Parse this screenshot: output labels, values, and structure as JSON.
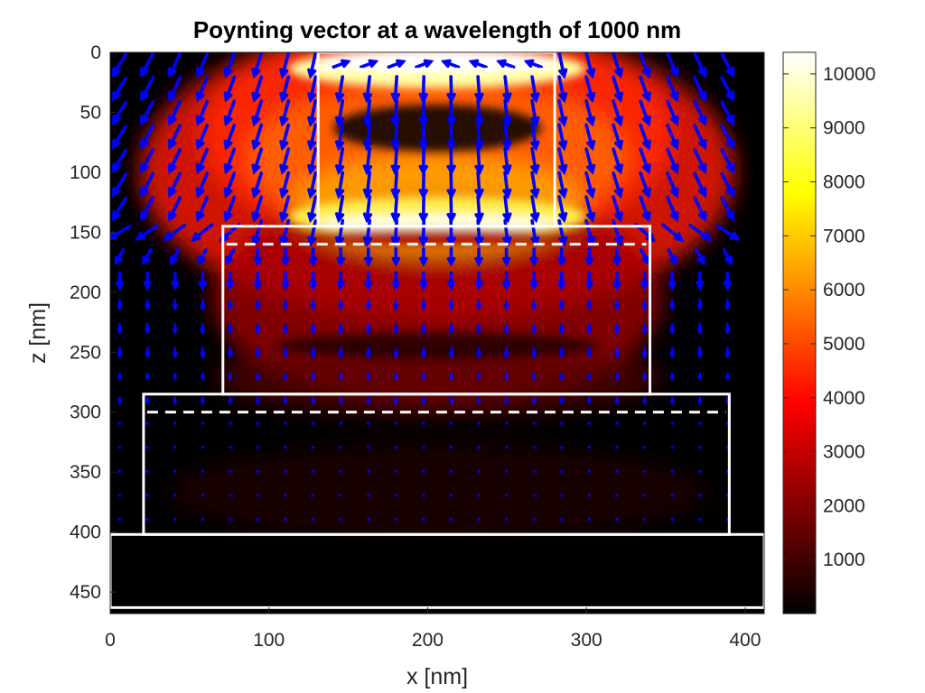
{
  "chart_data": {
    "type": "heatmap",
    "title": "Poynting vector at a wavelength of 1000 nm",
    "xlabel": "x [nm]",
    "ylabel": "z [nm]",
    "xlim": [
      0,
      412
    ],
    "ylim": [
      0,
      468
    ],
    "y_reversed": true,
    "x_ticks": [
      0,
      100,
      200,
      300,
      400
    ],
    "y_ticks": [
      0,
      50,
      100,
      150,
      200,
      250,
      300,
      350,
      400,
      450
    ],
    "colormap": "hot",
    "colorbar": {
      "range": [
        0,
        10400
      ],
      "ticks": [
        1000,
        2000,
        3000,
        4000,
        5000,
        6000,
        7000,
        8000,
        9000,
        10000
      ]
    },
    "structure_outlines": [
      {
        "x": [
          131,
          280
        ],
        "z": [
          0,
          145
        ]
      },
      {
        "x": [
          71,
          340
        ],
        "z": [
          145,
          285
        ]
      },
      {
        "x": [
          21,
          390
        ],
        "z": [
          285,
          402
        ]
      },
      {
        "x": [
          0,
          412
        ],
        "z": [
          402,
          463
        ]
      }
    ],
    "dashed_lines_z": [
      14,
      160,
      300
    ],
    "grid": false,
    "legend": "none",
    "arrow_color": "#0000ff",
    "outline_color": "#ffffff"
  }
}
